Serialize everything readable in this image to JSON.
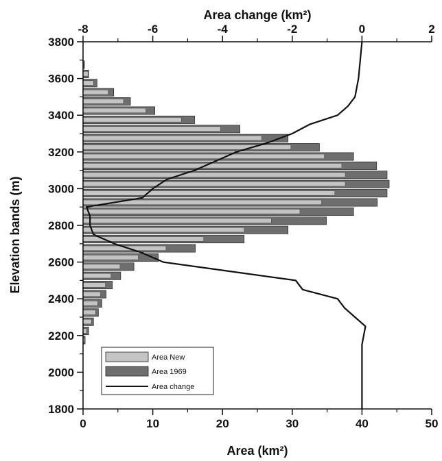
{
  "chart_data": {
    "type": "bar",
    "orientation": "horizontal",
    "ylabel": "Elevation bands (m)",
    "xlabel_bottom": "Area (km²)",
    "xlabel_top": "Area change (km²)",
    "ylim": [
      1800,
      3800
    ],
    "xlim_bottom": [
      0,
      50
    ],
    "xlim_top": [
      -8,
      2
    ],
    "yticks": [
      "1800",
      "2000",
      "2200",
      "2400",
      "2600",
      "2800",
      "3000",
      "3200",
      "3400",
      "3600",
      "3800"
    ],
    "xticks_bottom": [
      "0",
      "10",
      "20",
      "30",
      "40",
      "50"
    ],
    "xticks_top": [
      "-8",
      "-6",
      "-4",
      "-2",
      "0",
      "2"
    ],
    "band_width_m": 50,
    "bands": [
      2175,
      2225,
      2275,
      2325,
      2375,
      2425,
      2475,
      2525,
      2575,
      2625,
      2675,
      2725,
      2775,
      2825,
      2875,
      2925,
      2975,
      3025,
      3075,
      3125,
      3175,
      3225,
      3275,
      3325,
      3375,
      3425,
      3475,
      3525,
      3575,
      3625,
      3675
    ],
    "series": [
      {
        "name": "Area 1969",
        "color": "#6e6e6e",
        "values": [
          0.3,
          0.8,
          1.5,
          2.2,
          2.7,
          3.3,
          4.2,
          5.4,
          7.3,
          10.8,
          16.1,
          23.1,
          29.4,
          34.9,
          38.8,
          42.2,
          43.6,
          43.9,
          43.6,
          42.1,
          38.8,
          33.9,
          29.4,
          22.5,
          16.0,
          10.3,
          6.8,
          4.4,
          2.0,
          0.8,
          0.2
        ]
      },
      {
        "name": "Area New",
        "color": "#c4c4c4",
        "values": [
          0.2,
          0.5,
          1.2,
          1.8,
          2.1,
          2.5,
          3.2,
          4.0,
          5.3,
          7.9,
          11.9,
          17.3,
          23.1,
          27.0,
          31.1,
          34.2,
          36.1,
          37.6,
          37.6,
          37.1,
          34.6,
          29.8,
          25.6,
          19.7,
          14.1,
          9.0,
          5.8,
          3.6,
          1.5,
          0.7,
          0.1
        ]
      },
      {
        "name": "Area change",
        "color": "#111111",
        "type": "line",
        "axis": "top",
        "points": [
          {
            "change": 0.0,
            "elevation": 1800
          },
          {
            "change": 0.0,
            "elevation": 2100
          },
          {
            "change": 0.0,
            "elevation": 2150
          },
          {
            "change": 0.1,
            "elevation": 2250
          },
          {
            "change": -0.2,
            "elevation": 2300
          },
          {
            "change": -0.5,
            "elevation": 2350
          },
          {
            "change": -0.7,
            "elevation": 2400
          },
          {
            "change": -1.7,
            "elevation": 2450
          },
          {
            "change": -1.9,
            "elevation": 2500
          },
          {
            "change": -3.8,
            "elevation": 2550
          },
          {
            "change": -5.7,
            "elevation": 2600
          },
          {
            "change": -6.3,
            "elevation": 2650
          },
          {
            "change": -7.1,
            "elevation": 2700
          },
          {
            "change": -7.7,
            "elevation": 2750
          },
          {
            "change": -7.8,
            "elevation": 2800
          },
          {
            "change": -7.8,
            "elevation": 2850
          },
          {
            "change": -7.9,
            "elevation": 2900
          },
          {
            "change": -6.3,
            "elevation": 2950
          },
          {
            "change": -6.0,
            "elevation": 3000
          },
          {
            "change": -5.6,
            "elevation": 3050
          },
          {
            "change": -4.8,
            "elevation": 3100
          },
          {
            "change": -4.2,
            "elevation": 3150
          },
          {
            "change": -3.6,
            "elevation": 3200
          },
          {
            "change": -2.7,
            "elevation": 3250
          },
          {
            "change": -2.0,
            "elevation": 3300
          },
          {
            "change": -1.5,
            "elevation": 3350
          },
          {
            "change": -0.7,
            "elevation": 3400
          },
          {
            "change": -0.4,
            "elevation": 3450
          },
          {
            "change": -0.2,
            "elevation": 3500
          },
          {
            "change": -0.1,
            "elevation": 3600
          },
          {
            "change": 0.0,
            "elevation": 3800
          }
        ]
      }
    ],
    "legend": {
      "placement": "bottom-left",
      "entries": [
        "Area New",
        "Area 1969",
        "Area change"
      ]
    },
    "grid": false
  }
}
